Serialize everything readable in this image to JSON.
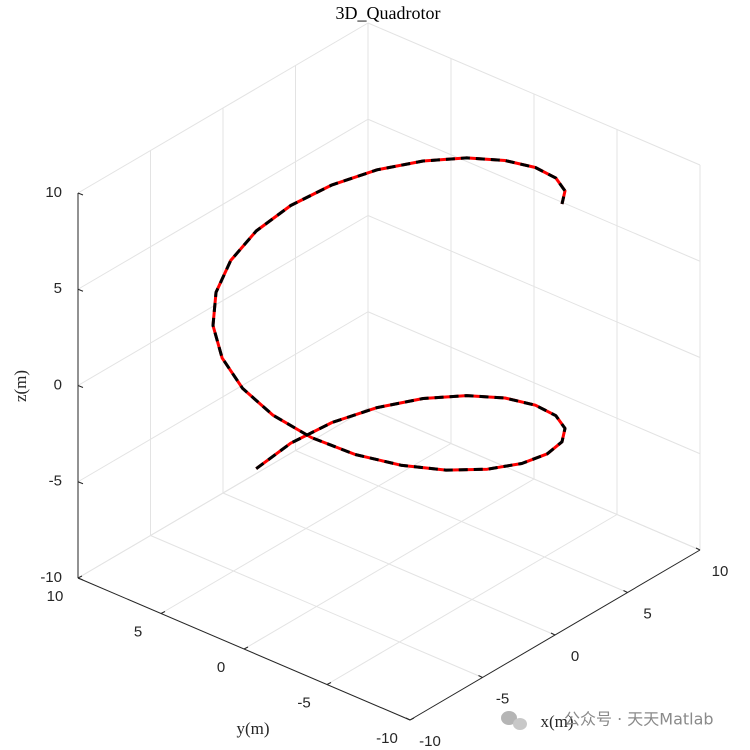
{
  "chart_data": {
    "type": "line3d",
    "title": "3D_Quadrotor",
    "xlabel": "x(m)",
    "ylabel": "y(m)",
    "zlabel": "z(m)",
    "xlim": [
      -10,
      10
    ],
    "ylim": [
      -10,
      10
    ],
    "zlim": [
      -10,
      10
    ],
    "xticks": [
      -10,
      -5,
      0,
      5,
      10
    ],
    "yticks": [
      -10,
      -5,
      0,
      5,
      10
    ],
    "zticks": [
      -10,
      -5,
      0,
      5,
      10
    ],
    "grid": true,
    "series": [
      {
        "color": "#ff0000",
        "dash": false,
        "x": [
          0,
          2.07,
          4,
          5.66,
          6.93,
          7.73,
          8,
          7.73,
          6.93,
          5.66,
          4,
          2.07,
          0,
          -2.07,
          -4,
          -5.66,
          -6.93,
          -7.73,
          -8,
          -7.73,
          -6.93,
          -5.66,
          -4,
          -2.07,
          0,
          2.07,
          4,
          5.66,
          6.93,
          7.73,
          8,
          7.73,
          6.93,
          5.66,
          4
        ],
        "y": [
          8,
          7.73,
          6.93,
          5.66,
          4,
          2.07,
          0,
          -2.07,
          -4,
          -5.66,
          -6.93,
          -7.73,
          -8,
          -7.73,
          -6.93,
          -5.66,
          -4,
          -2.07,
          0,
          2.07,
          4,
          5.66,
          6.93,
          7.73,
          8,
          7.73,
          6.93,
          5.66,
          4,
          2.07,
          0,
          -2.07,
          -4,
          -5.66,
          -6.93
        ],
        "z": [
          -8,
          -7.49,
          -6.97,
          -6.46,
          -5.94,
          -5.43,
          -4.91,
          -4.4,
          -3.88,
          -3.37,
          -2.86,
          -2.34,
          -1.83,
          -1.31,
          -0.8,
          -0.28,
          0.23,
          0.75,
          1.26,
          1.77,
          2.29,
          2.8,
          3.32,
          3.83,
          4.35,
          4.86,
          5.37,
          5.89,
          6.4,
          6.92,
          7.43,
          7.95,
          8.46,
          8.97,
          9.49
        ]
      },
      {
        "color": "#000000",
        "dash": true,
        "x": [
          0,
          2.07,
          4,
          5.66,
          6.93,
          7.73,
          8,
          7.73,
          6.93,
          5.66,
          4,
          2.07,
          0,
          -2.07,
          -4,
          -5.66,
          -6.93,
          -7.73,
          -8,
          -7.73,
          -6.93,
          -5.66,
          -4,
          -2.07,
          0,
          2.07,
          4,
          5.66,
          6.93,
          7.73,
          8,
          7.73,
          6.93,
          5.66,
          4
        ],
        "y": [
          8,
          7.73,
          6.93,
          5.66,
          4,
          2.07,
          0,
          -2.07,
          -4,
          -5.66,
          -6.93,
          -7.73,
          -8,
          -7.73,
          -6.93,
          -5.66,
          -4,
          -2.07,
          0,
          2.07,
          4,
          5.66,
          6.93,
          7.73,
          8,
          7.73,
          6.93,
          5.66,
          4,
          2.07,
          0,
          -2.07,
          -4,
          -5.66,
          -6.93
        ],
        "z": [
          -8,
          -7.49,
          -6.97,
          -6.46,
          -5.94,
          -5.43,
          -4.91,
          -4.4,
          -3.88,
          -3.37,
          -2.86,
          -2.34,
          -1.83,
          -1.31,
          -0.8,
          -0.28,
          0.23,
          0.75,
          1.26,
          1.77,
          2.29,
          2.8,
          3.32,
          3.83,
          4.35,
          4.86,
          5.37,
          5.89,
          6.4,
          6.92,
          7.43,
          7.95,
          8.46,
          8.97,
          9.49
        ]
      }
    ]
  },
  "watermark": "公众号 · 天天Matlab"
}
